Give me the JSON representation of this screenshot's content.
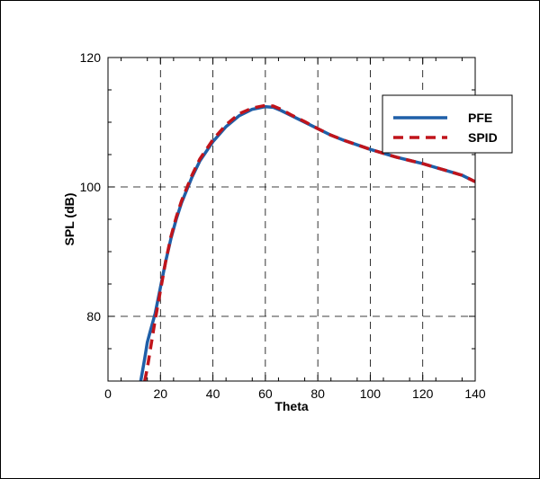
{
  "chart_data": {
    "type": "line",
    "title": "",
    "xlabel": "Theta",
    "ylabel": "SPL (dB)",
    "xlim": [
      0,
      140
    ],
    "ylim": [
      70,
      120
    ],
    "x_ticks": [
      0,
      20,
      40,
      60,
      80,
      100,
      120,
      140
    ],
    "y_ticks": [
      80,
      100,
      120
    ],
    "grid": true,
    "legend_position": "top-right",
    "series": [
      {
        "name": "PFE",
        "color": "#1f5fa8",
        "style": "solid",
        "x": [
          12.5,
          14,
          15,
          16,
          18,
          20,
          22,
          24,
          26,
          28,
          30,
          32,
          35,
          40,
          45,
          50,
          55,
          60,
          63,
          66,
          70,
          75,
          80,
          85,
          90,
          95,
          100,
          105,
          110,
          115,
          120,
          125,
          130,
          135,
          140
        ],
        "values": [
          70.0,
          73.5,
          76.0,
          77.5,
          80.5,
          84.5,
          88.5,
          92.0,
          95.0,
          97.5,
          99.5,
          101.5,
          104.0,
          107.0,
          109.3,
          111.0,
          112.0,
          112.4,
          112.3,
          111.8,
          111.0,
          110.0,
          109.0,
          108.0,
          107.2,
          106.5,
          105.8,
          105.2,
          104.6,
          104.1,
          103.6,
          103.0,
          102.4,
          101.8,
          100.8
        ]
      },
      {
        "name": "SPID",
        "color": "#c0141b",
        "style": "dashed",
        "x": [
          14,
          15,
          16,
          17,
          18,
          20,
          22,
          24,
          26,
          28,
          30,
          32,
          35,
          40,
          45,
          50,
          55,
          60,
          63,
          66,
          70,
          75,
          80,
          85,
          90,
          95,
          100,
          105,
          110,
          115,
          120,
          125,
          130,
          135,
          140
        ],
        "values": [
          70.0,
          72.0,
          74.5,
          77.0,
          79.5,
          84.0,
          88.5,
          92.3,
          95.3,
          97.8,
          99.8,
          101.8,
          104.3,
          107.3,
          109.6,
          111.3,
          112.2,
          112.6,
          112.5,
          112.0,
          111.1,
          110.1,
          109.0,
          108.0,
          107.2,
          106.5,
          105.8,
          105.2,
          104.6,
          104.1,
          103.6,
          103.0,
          102.4,
          101.8,
          100.8
        ]
      }
    ]
  }
}
